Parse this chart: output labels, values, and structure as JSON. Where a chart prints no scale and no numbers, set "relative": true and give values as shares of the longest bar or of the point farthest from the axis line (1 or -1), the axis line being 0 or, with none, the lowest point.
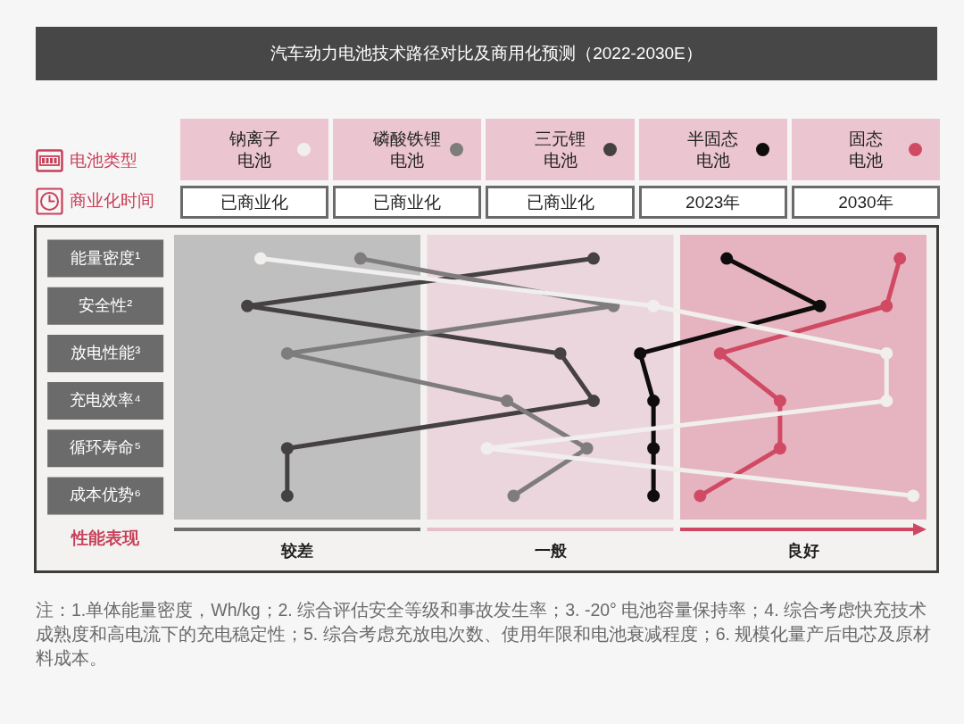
{
  "chart_data": {
    "type": "line",
    "orientation": "horizontal",
    "relative": true,
    "title": "汽车动力电池技术路径对比及商用化预测（2022-2030E）",
    "legend": "top",
    "legend_title": "电池类型",
    "xlabel": "性能表现",
    "marker": "circle",
    "line_style": "solid",
    "categories": [
      "能量密度¹",
      "安全性²",
      "放电性能³",
      "充电效率⁴",
      "循环寿命⁵",
      "成本优势⁶"
    ],
    "series": [
      {
        "name": "钠离子电池",
        "color": "#f1efed",
        "values": [
          0.02,
          0.61,
          0.96,
          0.96,
          0.36,
          1
        ]
      },
      {
        "name": "磷酸铁锂电池",
        "color": "#7e7c7d",
        "values": [
          0.17,
          0.55,
          0.06,
          0.39,
          0.51,
          0.4
        ]
      },
      {
        "name": "三元锂电池",
        "color": "#454143",
        "values": [
          0.52,
          0,
          0.47,
          0.52,
          0.06,
          0.06
        ]
      },
      {
        "name": "半固态电池",
        "color": "#0e0c0d",
        "values": [
          0.72,
          0.86,
          0.59,
          0.61,
          0.61,
          0.61
        ]
      },
      {
        "name": "固态电池",
        "color": "#d04a64",
        "values": [
          0.98,
          0.96,
          0.71,
          0.8,
          0.8,
          0.68
        ]
      }
    ],
    "bands": [
      {
        "axis": "x",
        "from": -0.11,
        "to": 0.26,
        "label": "较差",
        "color": "#bfbfbf"
      },
      {
        "axis": "x",
        "from": 0.27,
        "to": 0.64,
        "label": "一般",
        "color": "#ecd6dd"
      },
      {
        "axis": "x",
        "from": 0.65,
        "to": 1.02,
        "label": "良好",
        "color": "#e6b4c0"
      }
    ],
    "annotations": [
      "商业化时间",
      "已商业化",
      "已商业化",
      "已商业化",
      "2023年",
      "2030年",
      "注：1.单体能量密度，Wh/kg；2. 综合评估安全等级和事故发生率；3. -20° 电池容量保持率；4. 综合考虑快充技术成熟度和高电流下的充电稳定性；5. 综合考虑充放电次数、使用年限和电池衰减程度；6. 规模化量产后电芯及原材料成本。"
    ]
  }
}
